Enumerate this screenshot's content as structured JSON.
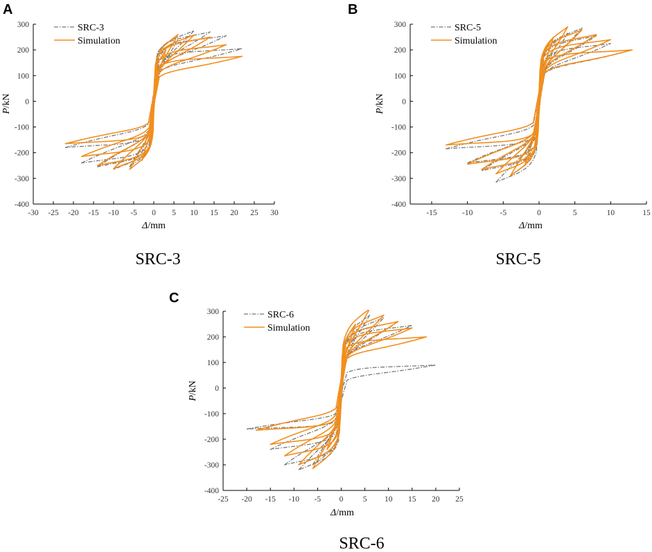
{
  "figure": {
    "captions": [
      "SRC-3",
      "SRC-5",
      "SRC-6"
    ]
  },
  "colors": {
    "simulation": "#f28e1c",
    "experiment": "#777777",
    "axis": "#000000"
  },
  "chart_data": [
    {
      "type": "line",
      "panel": "A",
      "caption": "SRC-3",
      "xlabel_italic": "Δ",
      "xlabel_rest": "/mm",
      "ylabel_italic": "P",
      "ylabel_rest": "/kN",
      "xlim": [
        -30,
        30
      ],
      "ylim": [
        -400,
        300
      ],
      "xticks": [
        -30,
        -25,
        -20,
        -15,
        -10,
        -5,
        0,
        5,
        10,
        15,
        20,
        25,
        30
      ],
      "yticks": [
        -400,
        -300,
        -200,
        -100,
        0,
        100,
        200,
        300
      ],
      "legend_position": "top-left",
      "series": [
        {
          "name": "SRC-3",
          "style": "dash-dot",
          "loops": [
            {
              "amp": 3,
              "pmax": 170,
              "pmin": -200,
              "pinch": 0.35
            },
            {
              "amp": 6,
              "pmax": 240,
              "pmin": -255,
              "pinch": 0.3
            },
            {
              "amp": 10,
              "pmax": 275,
              "pmin": -265,
              "pinch": 0.25
            },
            {
              "amp": 14,
              "pmax": 270,
              "pmin": -255,
              "pinch": 0.2
            },
            {
              "amp": 18,
              "pmax": 255,
              "pmin": -240,
              "pinch": 0.18
            },
            {
              "amp": 22,
              "pmax": 205,
              "pmin": -180,
              "pinch": 0.15
            }
          ]
        },
        {
          "name": "Simulation",
          "style": "solid",
          "loops": [
            {
              "amp": 3,
              "pmax": 200,
              "pmin": -230,
              "pinch": 0.35
            },
            {
              "amp": 6,
              "pmax": 260,
              "pmin": -265,
              "pinch": 0.3
            },
            {
              "amp": 10,
              "pmax": 258,
              "pmin": -262,
              "pinch": 0.25
            },
            {
              "amp": 14,
              "pmax": 250,
              "pmin": -250,
              "pinch": 0.2
            },
            {
              "amp": 18,
              "pmax": 220,
              "pmin": -215,
              "pinch": 0.18
            },
            {
              "amp": 22,
              "pmax": 175,
              "pmin": -165,
              "pinch": 0.15
            }
          ]
        }
      ]
    },
    {
      "type": "line",
      "panel": "B",
      "caption": "SRC-5",
      "xlabel_italic": "Δ",
      "xlabel_rest": "/mm",
      "ylabel_italic": "P",
      "ylabel_rest": "/kN",
      "xlim": [
        -18,
        15
      ],
      "ylim": [
        -400,
        300
      ],
      "xticks": [
        -15,
        -10,
        -5,
        0,
        5,
        10,
        15
      ],
      "yticks": [
        -400,
        -300,
        -200,
        -100,
        0,
        100,
        200,
        300
      ],
      "legend_position": "top-left",
      "series": [
        {
          "name": "SRC-5",
          "style": "dash-dot",
          "loops": [
            {
              "amp": 2,
              "pmax": 200,
              "pmin": -230,
              "pinch": 0.35
            },
            {
              "amp": 4,
              "pmax": 265,
              "pmin": -290,
              "pinch": 0.3
            },
            {
              "amp": 6,
              "pmax": 285,
              "pmin": -315,
              "pinch": 0.25
            },
            {
              "amp": 8,
              "pmax": 255,
              "pmin": -270,
              "pinch": 0.2
            },
            {
              "amp": 10,
              "pmax": 225,
              "pmin": -240,
              "pinch": 0.18
            },
            {
              "amp": 13,
              "pmax": 200,
              "pmin": -185,
              "pinch": 0.15
            }
          ]
        },
        {
          "name": "Simulation",
          "style": "solid",
          "loops": [
            {
              "amp": 2,
              "pmax": 250,
              "pmin": -250,
              "pinch": 0.35
            },
            {
              "amp": 4,
              "pmax": 290,
              "pmin": -290,
              "pinch": 0.3
            },
            {
              "amp": 6,
              "pmax": 278,
              "pmin": -282,
              "pinch": 0.25
            },
            {
              "amp": 8,
              "pmax": 260,
              "pmin": -265,
              "pinch": 0.2
            },
            {
              "amp": 10,
              "pmax": 240,
              "pmin": -245,
              "pinch": 0.18
            },
            {
              "amp": 13,
              "pmax": 200,
              "pmin": -170,
              "pinch": 0.15
            }
          ]
        }
      ]
    },
    {
      "type": "line",
      "panel": "C",
      "caption": "SRC-6",
      "xlabel_italic": "Δ",
      "xlabel_rest": "/mm",
      "ylabel_italic": "P",
      "ylabel_rest": "/kN",
      "xlim": [
        -25,
        25
      ],
      "ylim": [
        -400,
        300
      ],
      "xticks": [
        -25,
        -20,
        -15,
        -10,
        -5,
        0,
        5,
        10,
        15,
        20,
        25
      ],
      "yticks": [
        -400,
        -300,
        -200,
        -100,
        0,
        100,
        200,
        300
      ],
      "legend_position": "top-left",
      "series": [
        {
          "name": "SRC-6",
          "style": "dash-dot",
          "loops": [
            {
              "amp": 3,
              "pmax": 200,
              "pmin": -240,
              "pinch": 0.35
            },
            {
              "amp": 6,
              "pmax": 285,
              "pmin": -300,
              "pinch": 0.3
            },
            {
              "amp": 9,
              "pmax": 275,
              "pmin": -320,
              "pinch": 0.25
            },
            {
              "amp": 12,
              "pmax": 260,
              "pmin": -300,
              "pinch": 0.2
            },
            {
              "amp": 15,
              "pmax": 245,
              "pmin": -240,
              "pinch": 0.18
            },
            {
              "amp": 20,
              "pmax": 90,
              "pmin": -160,
              "pinch": 0.15
            }
          ]
        },
        {
          "name": "Simulation",
          "style": "solid",
          "loops": [
            {
              "amp": 3,
              "pmax": 250,
              "pmin": -240,
              "pinch": 0.35
            },
            {
              "amp": 6,
              "pmax": 310,
              "pmin": -315,
              "pinch": 0.3
            },
            {
              "amp": 9,
              "pmax": 285,
              "pmin": -300,
              "pinch": 0.25
            },
            {
              "amp": 12,
              "pmax": 260,
              "pmin": -265,
              "pinch": 0.2
            },
            {
              "amp": 15,
              "pmax": 235,
              "pmin": -220,
              "pinch": 0.18
            },
            {
              "amp": 18,
              "pmax": 200,
              "pmin": -165,
              "pinch": 0.15
            }
          ]
        }
      ]
    }
  ]
}
